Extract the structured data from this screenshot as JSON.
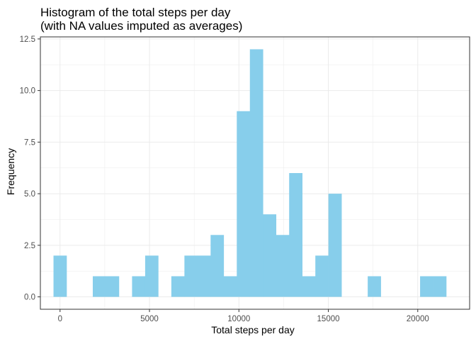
{
  "chart_data": {
    "type": "bar",
    "subtype": "histogram",
    "title_lines": [
      "Histogram of the total steps per day",
      "(with NA values imputed as averages)"
    ],
    "xlabel": "Total steps per day",
    "ylabel": "Frequency",
    "xlim": [
      -1100,
      22900
    ],
    "ylim": [
      -0.6,
      12.6
    ],
    "x_ticks": [
      0,
      5000,
      10000,
      15000,
      20000
    ],
    "x_tick_labels": [
      "0",
      "5000",
      "10000",
      "15000",
      "20000"
    ],
    "y_ticks": [
      0,
      2.5,
      5,
      7.5,
      10,
      12.5
    ],
    "y_tick_labels": [
      "0.0",
      "2.5",
      "5.0",
      "7.5",
      "10.0",
      "12.5"
    ],
    "grid": true,
    "bar_color": "#87CEEB",
    "panel_border_color": "#333333",
    "grid_color": "#ebebeb",
    "bins": [
      {
        "x0": -366,
        "x1": 366,
        "count": 2
      },
      {
        "x0": 366,
        "x1": 1098,
        "count": 0
      },
      {
        "x0": 1098,
        "x1": 1830,
        "count": 0
      },
      {
        "x0": 1830,
        "x1": 2562,
        "count": 1
      },
      {
        "x0": 2562,
        "x1": 3294,
        "count": 1
      },
      {
        "x0": 3294,
        "x1": 4026,
        "count": 0
      },
      {
        "x0": 4026,
        "x1": 4758,
        "count": 1
      },
      {
        "x0": 4758,
        "x1": 5490,
        "count": 2
      },
      {
        "x0": 5490,
        "x1": 6222,
        "count": 0
      },
      {
        "x0": 6222,
        "x1": 6954,
        "count": 1
      },
      {
        "x0": 6954,
        "x1": 7686,
        "count": 2
      },
      {
        "x0": 7686,
        "x1": 8418,
        "count": 2
      },
      {
        "x0": 8418,
        "x1": 9150,
        "count": 3
      },
      {
        "x0": 9150,
        "x1": 9882,
        "count": 1
      },
      {
        "x0": 9882,
        "x1": 10614,
        "count": 9
      },
      {
        "x0": 10614,
        "x1": 11346,
        "count": 12
      },
      {
        "x0": 11346,
        "x1": 12078,
        "count": 4
      },
      {
        "x0": 12078,
        "x1": 12810,
        "count": 3
      },
      {
        "x0": 12810,
        "x1": 13542,
        "count": 6
      },
      {
        "x0": 13542,
        "x1": 14274,
        "count": 1
      },
      {
        "x0": 14274,
        "x1": 15006,
        "count": 2
      },
      {
        "x0": 15006,
        "x1": 15738,
        "count": 5
      },
      {
        "x0": 15738,
        "x1": 16470,
        "count": 0
      },
      {
        "x0": 16470,
        "x1": 17202,
        "count": 0
      },
      {
        "x0": 17202,
        "x1": 17934,
        "count": 1
      },
      {
        "x0": 17934,
        "x1": 18666,
        "count": 0
      },
      {
        "x0": 18666,
        "x1": 19398,
        "count": 0
      },
      {
        "x0": 19398,
        "x1": 20130,
        "count": 0
      },
      {
        "x0": 20130,
        "x1": 20862,
        "count": 1
      },
      {
        "x0": 20862,
        "x1": 21594,
        "count": 1
      }
    ]
  }
}
